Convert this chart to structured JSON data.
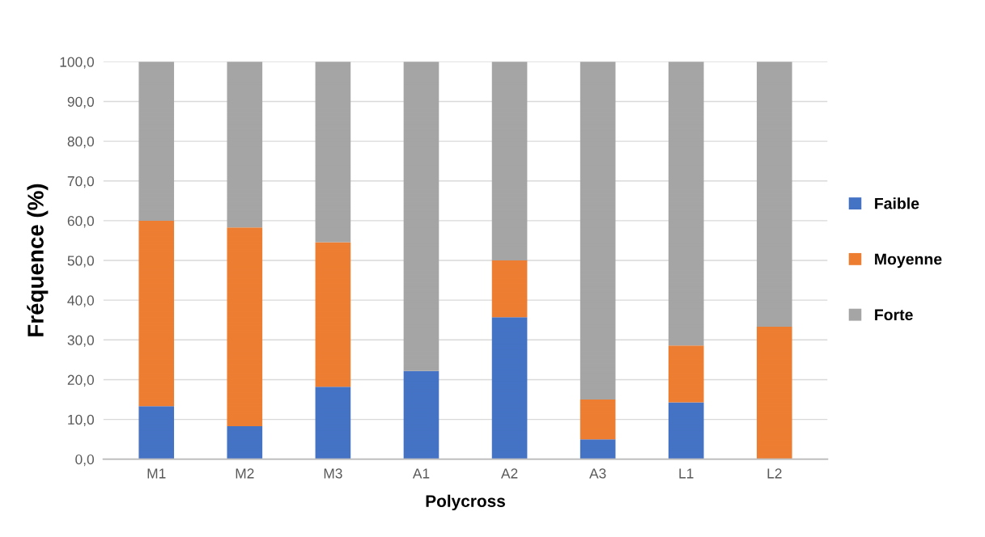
{
  "chart_data": {
    "type": "bar",
    "stacked": true,
    "xlabel": "Polycross",
    "ylabel": "Fréquence (%)",
    "categories": [
      "M1",
      "M2",
      "M3",
      "A1",
      "A2",
      "A3",
      "L1",
      "L2"
    ],
    "series": [
      {
        "name": "Faible",
        "color": "#4472c4",
        "values": [
          13.3,
          8.3,
          18.2,
          22.2,
          35.7,
          5.0,
          14.3,
          0.0
        ]
      },
      {
        "name": "Moyenne",
        "color": "#ed7d31",
        "values": [
          46.7,
          50.0,
          36.4,
          0.0,
          14.3,
          10.0,
          14.3,
          33.3
        ]
      },
      {
        "name": "Forte",
        "color": "#a5a5a5",
        "values": [
          40.0,
          41.7,
          45.4,
          77.8,
          50.0,
          85.0,
          71.4,
          66.7
        ]
      }
    ],
    "ylim": [
      0,
      100
    ],
    "yticks": [
      {
        "value": 0,
        "label": "0,0"
      },
      {
        "value": 10,
        "label": "10,0"
      },
      {
        "value": 20,
        "label": "20,0"
      },
      {
        "value": 30,
        "label": "30,0"
      },
      {
        "value": 40,
        "label": "40,0"
      },
      {
        "value": 50,
        "label": "50,0"
      },
      {
        "value": 60,
        "label": "60,0"
      },
      {
        "value": 70,
        "label": "70,0"
      },
      {
        "value": 80,
        "label": "80,0"
      },
      {
        "value": 90,
        "label": "90,0"
      },
      {
        "value": 100,
        "label": "100,0"
      }
    ],
    "grid": "y",
    "legend": "right"
  }
}
